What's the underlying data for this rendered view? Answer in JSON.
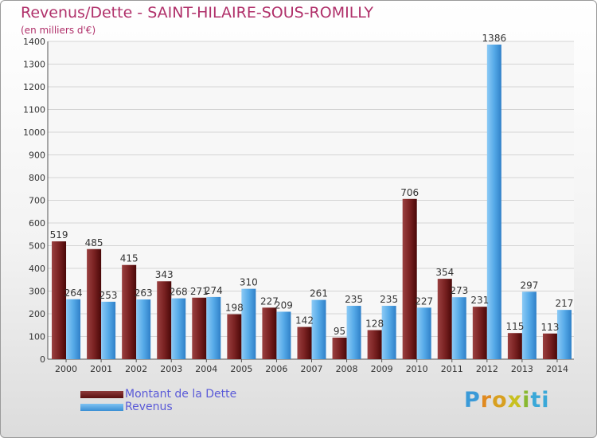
{
  "header": {
    "title": "Revenus/Dette - SAINT-HILAIRE-SOUS-ROMILLY",
    "subtitle": "(en milliers d'€)"
  },
  "legend": {
    "debt_label": "Montant de la Dette",
    "revenue_label": "Revenus"
  },
  "logo": {
    "letters": [
      "P",
      "r",
      "o",
      "x",
      "i",
      "ti"
    ]
  },
  "colors": {
    "debt": "#6e1a1a",
    "revenue": "#4aa3e6",
    "title": "#b0306a",
    "legend_text": "#5a5ad8"
  },
  "chart_data": {
    "type": "bar",
    "title": "Revenus/Dette - SAINT-HILAIRE-SOUS-ROMILLY",
    "ylabel": "(en milliers d'€)",
    "categories": [
      "2000",
      "2001",
      "2002",
      "2003",
      "2004",
      "2005",
      "2006",
      "2007",
      "2008",
      "2009",
      "2010",
      "2011",
      "2012",
      "2013",
      "2014"
    ],
    "series": [
      {
        "name": "Montant de la Dette",
        "values": [
          519,
          485,
          415,
          343,
          271,
          198,
          227,
          142,
          95,
          128,
          706,
          354,
          231,
          115,
          113
        ]
      },
      {
        "name": "Revenus",
        "values": [
          264,
          253,
          263,
          268,
          274,
          310,
          209,
          261,
          235,
          235,
          227,
          273,
          1386,
          297,
          217
        ]
      }
    ],
    "ylim": [
      0,
      1400
    ],
    "yticks": [
      0,
      100,
      200,
      300,
      400,
      500,
      600,
      700,
      800,
      900,
      1000,
      1100,
      1200,
      1300,
      1400
    ],
    "grid": true,
    "legend_position": "bottom-left"
  }
}
